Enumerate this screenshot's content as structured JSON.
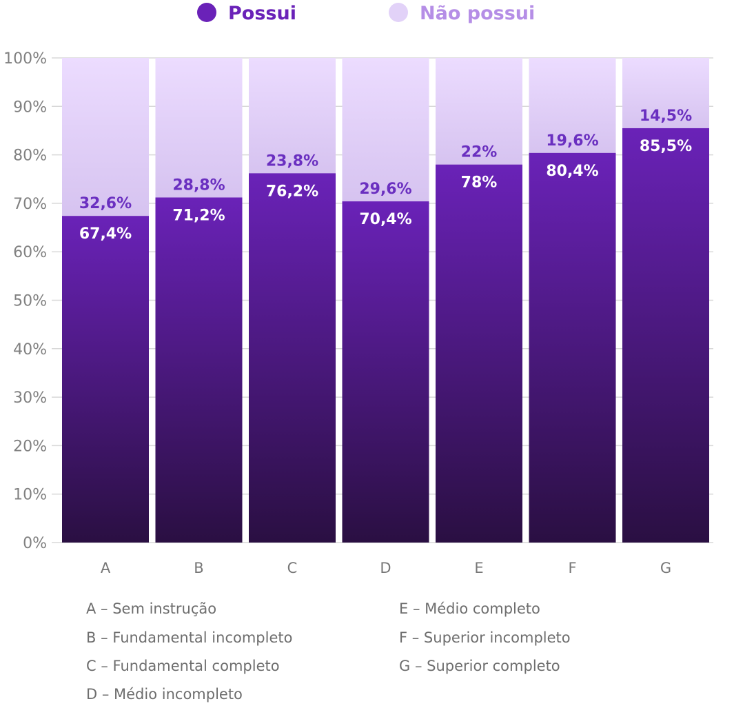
{
  "chart_data": {
    "type": "bar",
    "stacked": true,
    "categories": [
      "A",
      "B",
      "C",
      "D",
      "E",
      "F",
      "G"
    ],
    "series": [
      {
        "name": "Possui",
        "values": [
          67.4,
          71.2,
          76.2,
          70.4,
          78,
          80.4,
          85.5
        ],
        "labels": [
          "67,4%",
          "71,2%",
          "76,2%",
          "70,4%",
          "78%",
          "80,4%",
          "85,5%"
        ]
      },
      {
        "name": "Não possui",
        "values": [
          32.6,
          28.8,
          23.8,
          29.6,
          22,
          19.6,
          14.5
        ],
        "labels": [
          "32,6%",
          "28,8%",
          "23,8%",
          "29,6%",
          "22%",
          "19,6%",
          "14,5%"
        ]
      }
    ],
    "ylim": [
      0,
      100
    ],
    "yticks": [
      0,
      10,
      20,
      30,
      40,
      50,
      60,
      70,
      80,
      90,
      100
    ],
    "ytick_labels": [
      "0%",
      "10%",
      "20%",
      "30%",
      "40%",
      "50%",
      "60%",
      "70%",
      "80%",
      "90%",
      "100%"
    ],
    "grid": true,
    "legend_position": "top",
    "colors": {
      "possui_top": "#6a22b8",
      "possui_bottom": "#2a0f42",
      "nao_top": "#ecdcff",
      "nao_bottom": "#d6c3f0",
      "legend_possui": "#6a22b8",
      "legend_nao": "#e2d2f8",
      "legend_nao_text": "#b58ee6",
      "grid": "#d8d8d8"
    },
    "category_key": [
      "A – Sem instrução",
      "B – Fundamental incompleto",
      "C – Fundamental completo",
      "D – Médio incompleto",
      "E – Médio completo",
      "F – Superior incompleto",
      "G – Superior completo"
    ]
  }
}
